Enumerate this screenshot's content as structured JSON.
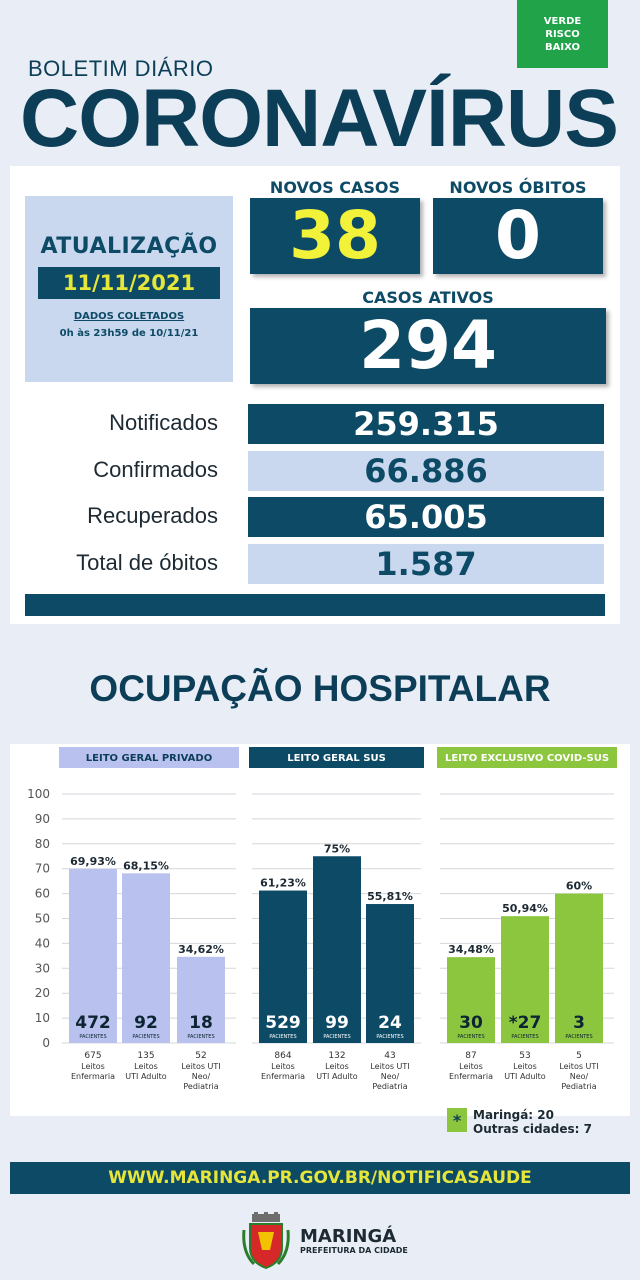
{
  "risk": {
    "line1": "VERDE",
    "line2": "RISCO",
    "line3": "BAIXO",
    "color": "#21a34a"
  },
  "header": {
    "subtitle": "BOLETIM DIÁRIO",
    "title": "CORONAVÍRUS"
  },
  "update": {
    "label": "ATUALIZAÇÃO",
    "date": "11/11/2021",
    "collected_label": "DADOS COLETADOS",
    "collected_range": "0h às 23h59 de 10/11/21"
  },
  "kpi": {
    "new_cases_label": "NOVOS CASOS",
    "new_cases": "38",
    "new_deaths_label": "NOVOS ÓBITOS",
    "new_deaths": "0",
    "active_label": "CASOS ATIVOS",
    "active": "294"
  },
  "stats": [
    {
      "label": "Notificados",
      "value": "259.315"
    },
    {
      "label": "Confirmados",
      "value": "66.886"
    },
    {
      "label": "Recuperados",
      "value": "65.005"
    },
    {
      "label": "Total de óbitos",
      "value": "1.587"
    }
  ],
  "hospital_title": "OCUPAÇÃO HOSPITALAR",
  "chart_data": {
    "type": "bar",
    "ylim": [
      0,
      100
    ],
    "yticks": [
      0,
      10,
      20,
      30,
      40,
      50,
      60,
      70,
      80,
      90,
      100
    ],
    "pacientes_label": "PACIENTES",
    "groups": [
      {
        "title": "LEITO GERAL PRIVADO",
        "color": "#b9c2ee",
        "header_color": "#b9c2ee",
        "header_text": "#0d3e58",
        "bars": [
          {
            "pct": 69.93,
            "pct_label": "69,93%",
            "patients": "472",
            "beds": "675",
            "cat": [
              "Leitos",
              "Enfermaria"
            ]
          },
          {
            "pct": 68.15,
            "pct_label": "68,15%",
            "patients": "92",
            "beds": "135",
            "cat": [
              "Leitos",
              "UTI Adulto"
            ]
          },
          {
            "pct": 34.62,
            "pct_label": "34,62%",
            "patients": "18",
            "beds": "52",
            "cat": [
              "Leitos UTI",
              "Neo/",
              "Pediatria"
            ]
          }
        ]
      },
      {
        "title": "LEITO GERAL SUS",
        "color": "#0d4a66",
        "header_color": "#0d4a66",
        "header_text": "#ffffff",
        "bars": [
          {
            "pct": 61.23,
            "pct_label": "61,23%",
            "patients": "529",
            "beds": "864",
            "cat": [
              "Leitos",
              "Enfermaria"
            ]
          },
          {
            "pct": 75,
            "pct_label": "75%",
            "patients": "99",
            "beds": "132",
            "cat": [
              "Leitos",
              "UTI Adulto"
            ]
          },
          {
            "pct": 55.81,
            "pct_label": "55,81%",
            "patients": "24",
            "beds": "43",
            "cat": [
              "Leitos UTI",
              "Neo/",
              "Pediatria"
            ]
          }
        ]
      },
      {
        "title": "LEITO EXCLUSIVO COVID-SUS",
        "color": "#8cc63f",
        "header_color": "#8cc63f",
        "header_text": "#ffffff",
        "bars": [
          {
            "pct": 34.48,
            "pct_label": "34,48%",
            "patients": "30",
            "beds": "87",
            "cat": [
              "Leitos",
              "Enfermaria"
            ]
          },
          {
            "pct": 50.94,
            "pct_label": "50,94%",
            "patients": "*27",
            "beds": "53",
            "cat": [
              "Leitos",
              "UTI Adulto"
            ]
          },
          {
            "pct": 60,
            "pct_label": "60%",
            "patients": "3",
            "beds": "5",
            "cat": [
              "Leitos UTI",
              "Neo/",
              "Pediatria"
            ]
          }
        ]
      }
    ]
  },
  "legend": {
    "symbol": "*",
    "line1": "Maringá: 20",
    "line2": "Outras cidades: 7"
  },
  "footer": {
    "url": "WWW.MARINGA.PR.GOV.BR/NOTIFICASAUDE",
    "city": "MARINGÁ",
    "entity": "PREFEITURA DA CIDADE"
  }
}
